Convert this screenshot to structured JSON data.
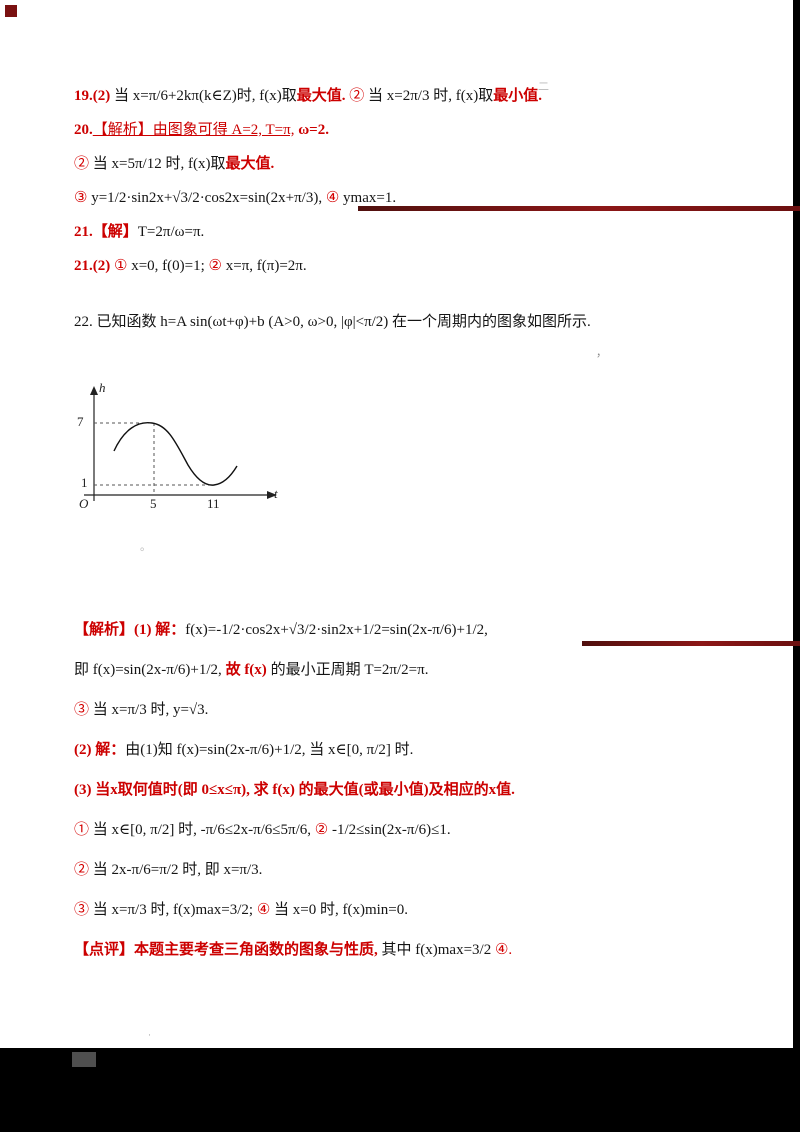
{
  "page": {
    "paper_color": "#ffffff",
    "background": "#000000",
    "accent_red": "#cc0000",
    "artifact_red": "#6b1010"
  },
  "top_block": {
    "lines": [
      {
        "name": "answer-line-19",
        "parts": [
          {
            "t": "19.(2) ",
            "s": "redb"
          },
          {
            "t": "当 x=π/6+2kπ(k∈Z)时, f(x)取",
            "s": "blk"
          },
          {
            "t": "最大值.",
            "s": "redb"
          },
          {
            "t": " ② ",
            "s": "red"
          },
          {
            "t": "当 x=2π/3 时, f(x)取",
            "s": "blk"
          },
          {
            "t": "最小值.",
            "s": "redb"
          }
        ]
      },
      {
        "name": "answer-line-20",
        "parts": [
          {
            "t": "20.",
            "s": "redb"
          },
          {
            "t": "【解析】由图象可得 A=2, T=π,",
            "s": "redu"
          },
          {
            "t": " ω=2.",
            "s": "redb"
          }
        ]
      },
      {
        "name": "answer-line-20b",
        "parts": [
          {
            "t": "② ",
            "s": "red"
          },
          {
            "t": "当 x=5π/12 时, f(x)取",
            "s": "blk"
          },
          {
            "t": "最大值.",
            "s": "redb"
          }
        ]
      },
      {
        "name": "answer-line-20c",
        "parts": [
          {
            "t": "③ ",
            "s": "red"
          },
          {
            "t": "y=1/2·sin2x+√3/2·cos2x=sin(2x+π/3), ",
            "s": "blk"
          },
          {
            "t": "④ ",
            "s": "red"
          },
          {
            "t": "ymax=1.",
            "s": "blk"
          }
        ]
      },
      {
        "name": "answer-line-21",
        "parts": [
          {
            "t": "21.【解】",
            "s": "redb"
          },
          {
            "t": "T=2π/ω=π.",
            "s": "blk"
          }
        ]
      },
      {
        "name": "answer-line-21b",
        "parts": [
          {
            "t": "21.(2) ",
            "s": "redb"
          },
          {
            "t": "① ",
            "s": "red"
          },
          {
            "t": "x=0, f(0)=1; ",
            "s": "blk"
          },
          {
            "t": "② ",
            "s": "red"
          },
          {
            "t": "x=π, f(π)=2π.",
            "s": "blk"
          }
        ]
      }
    ]
  },
  "problem": {
    "lines": [
      {
        "name": "problem-line-22",
        "parts": [
          {
            "t": "22. 已知函数 h=A sin(ωt+φ)+b (A>0, ω>0, |φ|<π/2) 在一个周期内的图象如图所示.",
            "s": "blk"
          }
        ]
      }
    ]
  },
  "graph": {
    "ylabel": "h",
    "ytick_top": "7",
    "ytick_bottom": "1",
    "origin": "O",
    "xtick_1": "5",
    "xtick_2": "11",
    "xlabel": "t"
  },
  "chart_data": {
    "type": "line",
    "title": "",
    "xlabel": "t",
    "ylabel": "h",
    "x_ticks": [
      5,
      11
    ],
    "y_ticks": [
      1,
      7
    ],
    "xlim": [
      0,
      14
    ],
    "ylim": [
      0,
      8
    ],
    "series": [
      {
        "name": "h(t)",
        "points": [
          [
            2,
            5
          ],
          [
            5,
            7
          ],
          [
            8,
            4
          ],
          [
            11,
            1
          ],
          [
            13,
            2.5
          ]
        ]
      }
    ],
    "annotations": [
      "maximum h=7 at t=5 marked with dashed guides",
      "minimum h=1 at t=11 marked with dashed guide"
    ],
    "grid": false,
    "legend": false
  },
  "solution_block": {
    "lines": [
      {
        "name": "solution-line-1",
        "parts": [
          {
            "t": "【解析】(1) 解：",
            "s": "redb"
          },
          {
            "t": "f(x)=-1/2·cos2x+√3/2·sin2x+1/2=sin(2x-π/6)+1/2,",
            "s": "blk"
          }
        ]
      },
      {
        "name": "solution-line-2",
        "parts": [
          {
            "t": "即 f(x)=sin(2x-π/6)+1/2, ",
            "s": "blk"
          },
          {
            "t": "故 f(x) ",
            "s": "redb"
          },
          {
            "t": "的最小正周期 T=2π/2=π.",
            "s": "blk"
          }
        ]
      },
      {
        "name": "solution-line-3",
        "parts": [
          {
            "t": "③ ",
            "s": "red"
          },
          {
            "t": "当 x=π/3 时, y=√3.",
            "s": "blk"
          }
        ]
      },
      {
        "name": "solution-line-4",
        "parts": [
          {
            "t": "(2) 解：",
            "s": "redb"
          },
          {
            "t": "由(1)知 f(x)=sin(2x-π/6)+1/2, 当 x∈[0, π/2] 时.",
            "s": "blk"
          }
        ]
      },
      {
        "name": "solution-line-5",
        "parts": [
          {
            "t": "(3) 当x取何值时(即 0≤x≤π), 求 f(x) 的最大值(或最小值)及相应的x值.",
            "s": "redb"
          }
        ]
      },
      {
        "name": "solution-line-6",
        "parts": [
          {
            "t": "① ",
            "s": "red"
          },
          {
            "t": "当 x∈[0, π/2] 时, -π/6≤2x-π/6≤5π/6, ",
            "s": "blk"
          },
          {
            "t": "② ",
            "s": "red"
          },
          {
            "t": "-1/2≤sin(2x-π/6)≤1.",
            "s": "blk"
          }
        ]
      },
      {
        "name": "solution-line-7",
        "parts": [
          {
            "t": "② ",
            "s": "red"
          },
          {
            "t": "当 2x-π/6=π/2 时, 即 x=π/3.",
            "s": "blk"
          }
        ]
      },
      {
        "name": "solution-line-8",
        "parts": [
          {
            "t": "③ ",
            "s": "red"
          },
          {
            "t": "当 x=π/3 时, f(x)max=3/2; ",
            "s": "blk"
          },
          {
            "t": "④ ",
            "s": "red"
          },
          {
            "t": "当 x=0 时, f(x)min=0.",
            "s": "blk"
          }
        ]
      },
      {
        "name": "solution-line-9",
        "parts": [
          {
            "t": "【点评】本题主要考查三角函数的图象与性质, ",
            "s": "redb"
          },
          {
            "t": "其中 f(x)max=3/2 ",
            "s": "blk"
          },
          {
            "t": "④.",
            "s": "red"
          }
        ]
      }
    ]
  },
  "faint_marks": {
    "m1": "二",
    "m2": "，",
    "m3": "。",
    "m4": "·"
  }
}
